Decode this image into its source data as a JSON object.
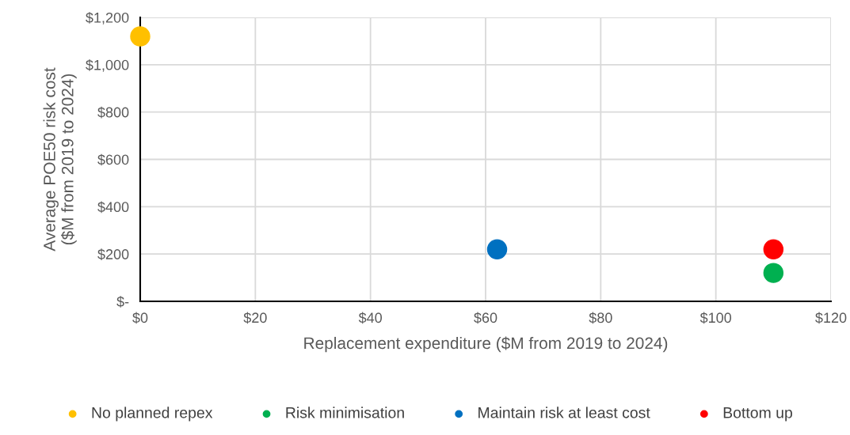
{
  "chart_data": {
    "type": "scatter",
    "xlabel": "Replacement expenditure ($M from 2019 to 2024)",
    "ylabel": "Average POE50 risk cost\n($M from 2019 to 2024)",
    "xlim": [
      0,
      120
    ],
    "ylim": [
      0,
      1200
    ],
    "xticks": [
      {
        "value": 0,
        "label": "$0"
      },
      {
        "value": 20,
        "label": "$20"
      },
      {
        "value": 40,
        "label": "$40"
      },
      {
        "value": 60,
        "label": "$60"
      },
      {
        "value": 80,
        "label": "$80"
      },
      {
        "value": 100,
        "label": "$100"
      },
      {
        "value": 120,
        "label": "$120"
      }
    ],
    "yticks": [
      {
        "value": 0,
        "label": "$-"
      },
      {
        "value": 200,
        "label": "$200"
      },
      {
        "value": 400,
        "label": "$400"
      },
      {
        "value": 600,
        "label": "$600"
      },
      {
        "value": 800,
        "label": "$800"
      },
      {
        "value": 1000,
        "label": "$1,000"
      },
      {
        "value": 1200,
        "label": "$1,200"
      }
    ],
    "grid": true,
    "legend": "bottom",
    "marker": "circle",
    "series": [
      {
        "name": "No planned repex",
        "color": "#ffc000",
        "x": [
          0
        ],
        "values": [
          1120
        ]
      },
      {
        "name": "Risk minimisation",
        "color": "#00b050",
        "x": [
          110
        ],
        "values": [
          120
        ]
      },
      {
        "name": "Maintain risk at least cost",
        "color": "#0070c0",
        "x": [
          62
        ],
        "values": [
          220
        ]
      },
      {
        "name": "Bottom up",
        "color": "#ff0000",
        "x": [
          110
        ],
        "values": [
          220
        ]
      }
    ]
  }
}
